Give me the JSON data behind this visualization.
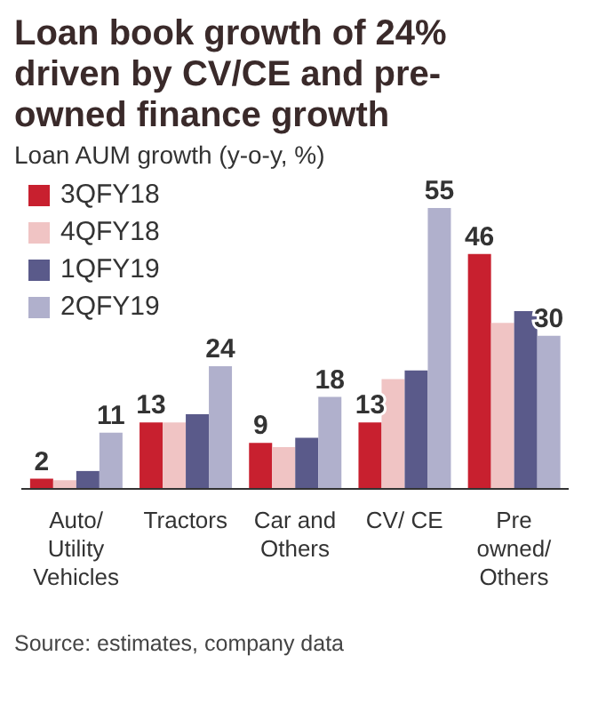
{
  "chart_data": {
    "type": "bar",
    "title": "Loan book growth of 24% driven by CV/CE and pre-owned finance growth",
    "subtitle": "Loan AUM growth (y-o-y, %)",
    "categories": [
      "Auto/ Utility Vehicles",
      "Tractors",
      "Car and Others",
      "CV/ CE",
      "Pre owned/ Others"
    ],
    "series": [
      {
        "name": "3QFY18",
        "color": "#c8202f",
        "values": [
          2,
          13,
          9,
          13,
          46
        ],
        "value_labels": [
          "2",
          "13",
          "9",
          "13",
          "46"
        ]
      },
      {
        "name": "4QFY18",
        "color": "#f0c4c4",
        "values": [
          1.7,
          13,
          8.2,
          21.5,
          32.5
        ],
        "value_labels": [
          null,
          null,
          null,
          null,
          null
        ]
      },
      {
        "name": "1QFY19",
        "color": "#5a5a8a",
        "values": [
          3.5,
          14.6,
          10,
          23.2,
          34.8
        ],
        "value_labels": [
          null,
          null,
          null,
          null,
          null
        ]
      },
      {
        "name": "2QFY19",
        "color": "#b0b0cc",
        "values": [
          11,
          24,
          18,
          55,
          30
        ],
        "value_labels": [
          "11",
          "24",
          "18",
          "55",
          "30"
        ]
      }
    ],
    "legend": "top left",
    "annotations": [
      "Source: estimates, company data"
    ]
  }
}
